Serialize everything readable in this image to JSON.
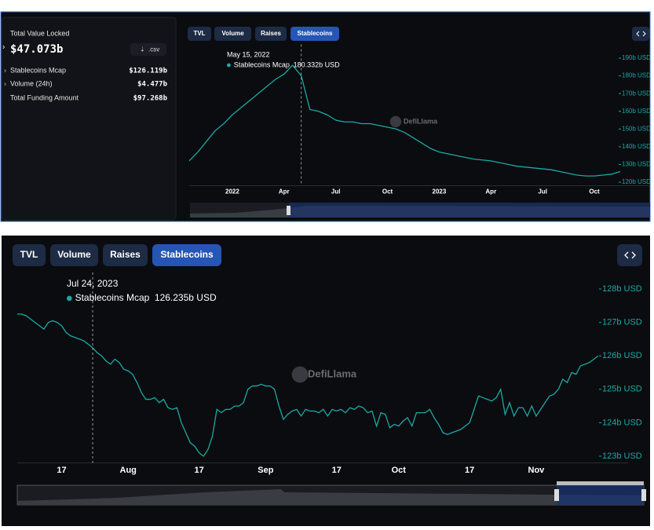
{
  "stats": {
    "tvl_label": "Total Value Locked",
    "tvl_value": "$47.073b",
    "csv": ".csv",
    "rows": [
      {
        "label": "Stablecoins Mcap",
        "value": "$126.119b"
      },
      {
        "label": "Volume (24h)",
        "value": "$4.477b"
      },
      {
        "label": "Total Funding Amount",
        "value": "$97.268b"
      }
    ]
  },
  "top_tabs": [
    "TVL",
    "Volume",
    "Raises",
    "Stablecoins"
  ],
  "bottom_tabs": [
    "TVL",
    "Volume",
    "Raises",
    "Stablecoins"
  ],
  "chart_data": [
    {
      "type": "line",
      "watermark": "DefiLlama",
      "categories": [
        null,
        null,
        null,
        null,
        null,
        "2022",
        null,
        null,
        null,
        null,
        null,
        "Apr",
        null,
        null,
        null,
        null,
        null,
        "Jul",
        null,
        null,
        null,
        null,
        null,
        "Oct",
        null,
        null,
        null,
        null,
        null,
        "2023",
        null,
        null,
        null,
        null,
        null,
        "Apr",
        null,
        null,
        null,
        null,
        null,
        "Jul",
        null,
        null,
        null,
        null,
        null,
        "Oct",
        null,
        null,
        null
      ],
      "series": [
        {
          "name": "Stablecoins Mcap",
          "color": "#1aa9a5",
          "values": [
            132,
            137,
            143,
            149,
            153,
            158,
            162,
            166,
            170,
            174,
            178,
            181,
            186,
            180,
            161,
            160,
            158,
            155,
            154,
            154,
            153,
            153,
            152,
            151,
            150,
            148,
            145,
            142,
            139,
            137,
            136,
            135,
            134,
            133,
            132.5,
            132,
            131,
            130,
            129,
            128.5,
            128,
            127.5,
            127,
            126,
            125,
            124,
            123.5,
            123.5,
            124,
            124.5,
            126
          ]
        }
      ],
      "ylim": [
        118,
        196
      ],
      "yticks": [
        {
          "value": 120,
          "label": "120b USD"
        },
        {
          "value": 130,
          "label": "130b USD"
        },
        {
          "value": 140,
          "label": "140b USD"
        },
        {
          "value": 150,
          "label": "150b USD"
        },
        {
          "value": 160,
          "label": "160b USD"
        },
        {
          "value": 170,
          "label": "170b USD"
        },
        {
          "value": 180,
          "label": "180b USD"
        },
        {
          "value": 190,
          "label": "190b USD"
        }
      ],
      "tooltip": {
        "date": "May 15, 2022",
        "value_label": "180.332b USD"
      }
    },
    {
      "type": "line",
      "watermark": "DefiLlama",
      "categories": [
        null,
        null,
        null,
        null,
        null,
        null,
        null,
        null,
        null,
        null,
        "17",
        null,
        null,
        null,
        null,
        null,
        null,
        null,
        null,
        null,
        null,
        null,
        null,
        null,
        null,
        "Aug",
        null,
        null,
        null,
        null,
        null,
        null,
        null,
        null,
        null,
        null,
        null,
        null,
        null,
        null,
        null,
        "17",
        null,
        null,
        null,
        null,
        null,
        null,
        null,
        null,
        null,
        null,
        null,
        null,
        null,
        null,
        "Sep",
        null,
        null,
        null,
        null,
        null,
        null,
        null,
        null,
        null,
        null,
        null,
        null,
        null,
        null,
        null,
        "17",
        null,
        null,
        null,
        null,
        null,
        null,
        null,
        null,
        null,
        null,
        null,
        null,
        null,
        "Oct",
        null,
        null,
        null,
        null,
        null,
        null,
        null,
        null,
        null,
        null,
        null,
        null,
        null,
        null,
        null,
        "17",
        null,
        null,
        null,
        null,
        null,
        null,
        null,
        null,
        null,
        null,
        null,
        null,
        null,
        null,
        "Nov",
        null,
        null,
        null,
        null,
        null,
        null,
        null,
        null,
        null,
        null,
        null,
        null,
        null,
        null
      ],
      "series": [
        {
          "name": "Stablecoins Mcap",
          "color": "#1aa9a5",
          "values": [
            127.25,
            127.25,
            127.2,
            127.1,
            127.0,
            126.9,
            126.8,
            127.0,
            127.05,
            127.0,
            126.9,
            126.7,
            126.6,
            126.55,
            126.5,
            126.45,
            126.35,
            126.24,
            126.1,
            126.0,
            125.85,
            125.75,
            125.9,
            125.8,
            125.6,
            125.55,
            125.45,
            125.2,
            124.9,
            124.7,
            124.7,
            124.75,
            124.6,
            124.7,
            124.45,
            124.4,
            124.45,
            124.0,
            123.7,
            123.4,
            123.3,
            123.1,
            123.0,
            123.2,
            123.6,
            124.4,
            124.3,
            124.4,
            124.4,
            124.5,
            124.5,
            124.6,
            125.0,
            125.1,
            125.1,
            125.15,
            125.1,
            125.1,
            125.0,
            124.5,
            124.1,
            124.25,
            124.35,
            124.4,
            124.2,
            124.4,
            124.35,
            124.35,
            124.3,
            124.4,
            124.2,
            124.4,
            124.35,
            124.4,
            124.3,
            124.45,
            124.4,
            124.5,
            124.45,
            124.3,
            124.35,
            123.9,
            124.3,
            124.25,
            123.85,
            123.95,
            123.9,
            124.05,
            124.15,
            123.9,
            124.3,
            124.3,
            124.3,
            124.4,
            124.15,
            123.95,
            123.7,
            123.65,
            123.7,
            123.75,
            123.8,
            123.9,
            124.0,
            124.4,
            124.8,
            124.75,
            124.7,
            124.65,
            124.75,
            125.0,
            124.25,
            124.6,
            124.2,
            124.45,
            124.45,
            124.2,
            124.5,
            124.2,
            124.4,
            124.6,
            124.8,
            124.85,
            125.0,
            125.3,
            125.2,
            125.5,
            125.45,
            125.7,
            125.75,
            125.8,
            125.9,
            126.0
          ]
        }
      ],
      "ylim": [
        122.8,
        128.4
      ],
      "yticks": [
        {
          "value": 123,
          "label": "123b USD"
        },
        {
          "value": 124,
          "label": "124b USD"
        },
        {
          "value": 125,
          "label": "125b USD"
        },
        {
          "value": 126,
          "label": "126b USD"
        },
        {
          "value": 127,
          "label": "127b USD"
        },
        {
          "value": 128,
          "label": "128b USD"
        }
      ],
      "tooltip": {
        "date": "Jul 24, 2023",
        "value_label": "126.235b USD"
      }
    }
  ]
}
